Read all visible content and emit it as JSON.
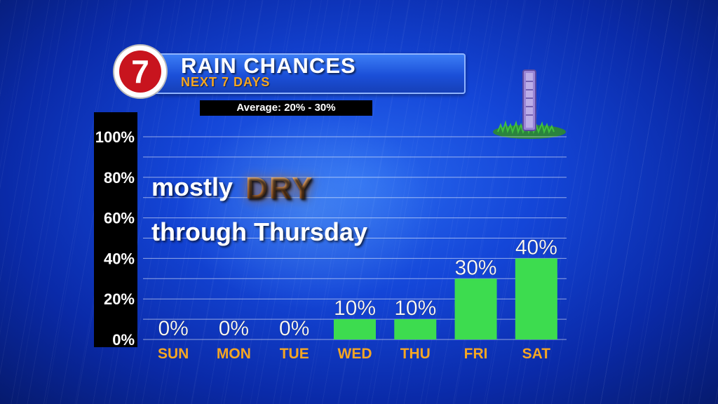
{
  "header": {
    "logo_text": "7",
    "title": "RAIN CHANCES",
    "subtitle": "NEXT 7 DAYS",
    "average": "Average: 20% - 30%"
  },
  "overlay": {
    "line1_prefix": "mostly",
    "line1_emphasis": "DRY",
    "line2": "through Thursday"
  },
  "colors": {
    "bar": "#3ddc4f",
    "day_label": "#f5a623",
    "title_bar": "#1b4fd8",
    "background": "#1446d8"
  },
  "chart_data": {
    "type": "bar",
    "categories": [
      "SUN",
      "MON",
      "TUE",
      "WED",
      "THU",
      "FRI",
      "SAT"
    ],
    "values": [
      0,
      0,
      0,
      10,
      10,
      30,
      40
    ],
    "value_labels": [
      "0%",
      "0%",
      "0%",
      "10%",
      "10%",
      "30%",
      "40%"
    ],
    "yticks": [
      "0%",
      "20%",
      "40%",
      "60%",
      "80%",
      "100%"
    ],
    "ylim": [
      0,
      100
    ],
    "grid": true
  }
}
